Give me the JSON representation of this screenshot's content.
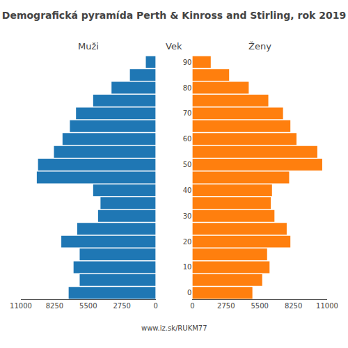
{
  "chart_data": {
    "type": "bar",
    "orientation": "horizontal",
    "title": "Demografická pyramída Perth & Kinross and Stirling, rok 2019",
    "ylabel": "Vek",
    "annotations": [
      "www.iz.sk/RUKM77"
    ],
    "categories": [
      "0",
      null,
      "10",
      null,
      "20",
      null,
      "30",
      null,
      "40",
      null,
      "50",
      null,
      "60",
      null,
      "70",
      null,
      "80",
      null,
      "90"
    ],
    "series": [
      {
        "name": "Muži",
        "xlim": [
          11000,
          0
        ],
        "values": [
          7100,
          6200,
          6700,
          6200,
          7700,
          6400,
          4700,
          4500,
          5100,
          9700,
          9600,
          8300,
          7600,
          7000,
          6500,
          5100,
          3600,
          2100,
          800
        ]
      },
      {
        "name": "Ženy",
        "xlim": [
          0,
          11000
        ],
        "values": [
          4900,
          5700,
          6300,
          6100,
          8000,
          7700,
          6700,
          6400,
          6500,
          7900,
          10600,
          10200,
          8500,
          8000,
          7400,
          6200,
          4600,
          3000,
          1500
        ]
      }
    ],
    "xticks": [
      0,
      2750,
      5500,
      8250,
      11000
    ],
    "grid": false
  }
}
